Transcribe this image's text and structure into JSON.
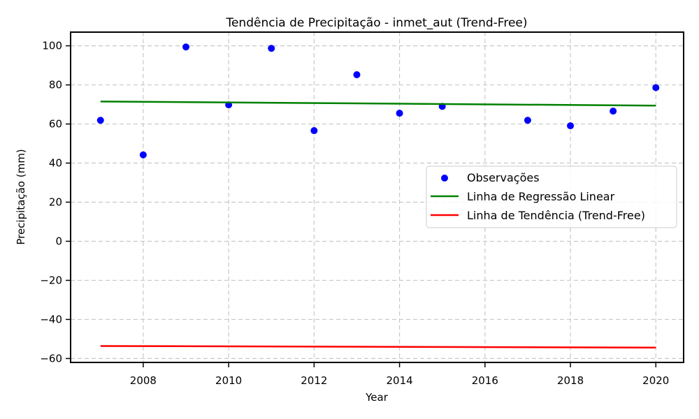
{
  "chart_data": {
    "type": "scatter",
    "title": "Tendência de Precipitação - inmet_aut (Trend-Free)",
    "xlabel": "Year",
    "ylabel": "Precipitação (mm)",
    "xlim": [
      2006.3,
      2020.65
    ],
    "ylim": [
      -62,
      107
    ],
    "xticks": [
      2008,
      2010,
      2012,
      2014,
      2016,
      2018,
      2020
    ],
    "yticks": [
      -60,
      -40,
      -20,
      0,
      20,
      40,
      60,
      80,
      100
    ],
    "xtick_labels": [
      "2008",
      "2010",
      "2012",
      "2014",
      "2016",
      "2018",
      "2020"
    ],
    "ytick_labels": [
      "−60",
      "−40",
      "−20",
      "0",
      "20",
      "40",
      "60",
      "80",
      "100"
    ],
    "grid": true,
    "legend_position": "center-right",
    "series": [
      {
        "name": "Observações",
        "kind": "scatter",
        "color": "#0000ff",
        "x": [
          2007,
          2008,
          2009,
          2010,
          2011,
          2012,
          2013,
          2014,
          2015,
          2017,
          2018,
          2019,
          2020
        ],
        "y": [
          61.9,
          44.2,
          99.4,
          69.8,
          98.7,
          56.6,
          85.2,
          65.5,
          69.0,
          61.9,
          59.1,
          66.6,
          78.6
        ]
      },
      {
        "name": "Linha de Regressão Linear",
        "kind": "line",
        "color": "#008000",
        "x": [
          2007,
          2020
        ],
        "y": [
          71.5,
          69.4
        ]
      },
      {
        "name": "Linha de Tendência (Trend-Free)",
        "kind": "line",
        "color": "#ff0000",
        "x": [
          2007,
          2020
        ],
        "y": [
          -53.6,
          -54.4
        ]
      }
    ]
  }
}
